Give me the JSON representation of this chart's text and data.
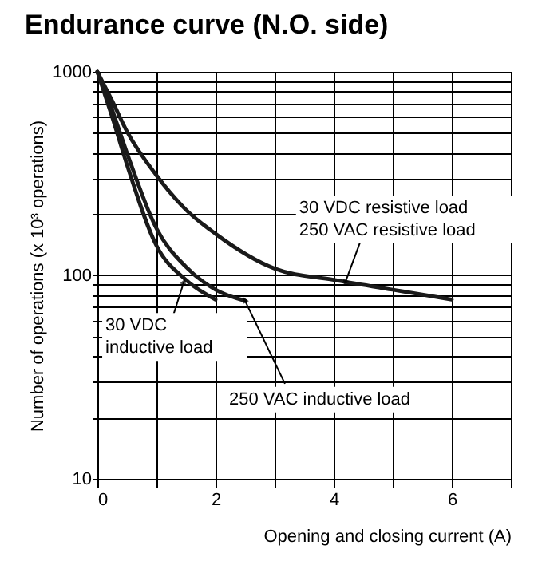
{
  "chart_data": {
    "type": "line",
    "title": "Endurance curve (N.O. side)",
    "xlabel": "Opening and closing current (A)",
    "ylabel": "Number of operations (x 10³ operations)",
    "log": "y",
    "grid": true,
    "legend": false,
    "marker": "none",
    "line_style": "solid",
    "xlim": [
      0,
      7
    ],
    "ylim": [
      10,
      1000
    ],
    "xticks": [
      0,
      {
        "value": 1,
        "label": null
      },
      2,
      {
        "value": 3,
        "label": null
      },
      4,
      {
        "value": 5,
        "label": null
      },
      6,
      {
        "value": 7,
        "label": null
      }
    ],
    "yticks": [
      10,
      {
        "value": 20,
        "label": null
      },
      {
        "value": 30,
        "label": null
      },
      {
        "value": 40,
        "label": null
      },
      {
        "value": 50,
        "label": null
      },
      {
        "value": 60,
        "label": null
      },
      {
        "value": 70,
        "label": null
      },
      {
        "value": 80,
        "label": null
      },
      {
        "value": 90,
        "label": null
      },
      100,
      {
        "value": 200,
        "label": null
      },
      {
        "value": 300,
        "label": null
      },
      {
        "value": 400,
        "label": null
      },
      {
        "value": 500,
        "label": null
      },
      {
        "value": 600,
        "label": null
      },
      {
        "value": 700,
        "label": null
      },
      {
        "value": 800,
        "label": null
      },
      {
        "value": 900,
        "label": null
      },
      1000
    ],
    "series": [
      {
        "color": "#1a1a1a",
        "x": [
          0,
          0.25,
          0.5,
          1,
          1.5,
          2,
          3,
          4,
          5,
          6
        ],
        "values": [
          1000,
          720,
          510,
          310,
          210,
          160,
          108,
          95,
          85,
          76
        ]
      },
      {
        "color": "#1a1a1a",
        "x": [
          0,
          0.25,
          0.5,
          1,
          1.5,
          2,
          2.5
        ],
        "values": [
          1000,
          650,
          400,
          170,
          110,
          85,
          75
        ]
      },
      {
        "color": "#1a1a1a",
        "x": [
          0,
          0.25,
          0.5,
          1,
          1.5,
          2
        ],
        "values": [
          1000,
          600,
          350,
          140,
          95,
          76
        ]
      }
    ],
    "annotations": [
      {
        "text": "30 VDC resistive load\n250 VAC resistive load",
        "x": 4.2,
        "y": 93
      },
      {
        "text": "30 VDC\ninductive load",
        "x": 1.46,
        "y": 92
      },
      {
        "text": "250 VAC inductive load",
        "x": 2.5,
        "y": 75
      }
    ]
  }
}
